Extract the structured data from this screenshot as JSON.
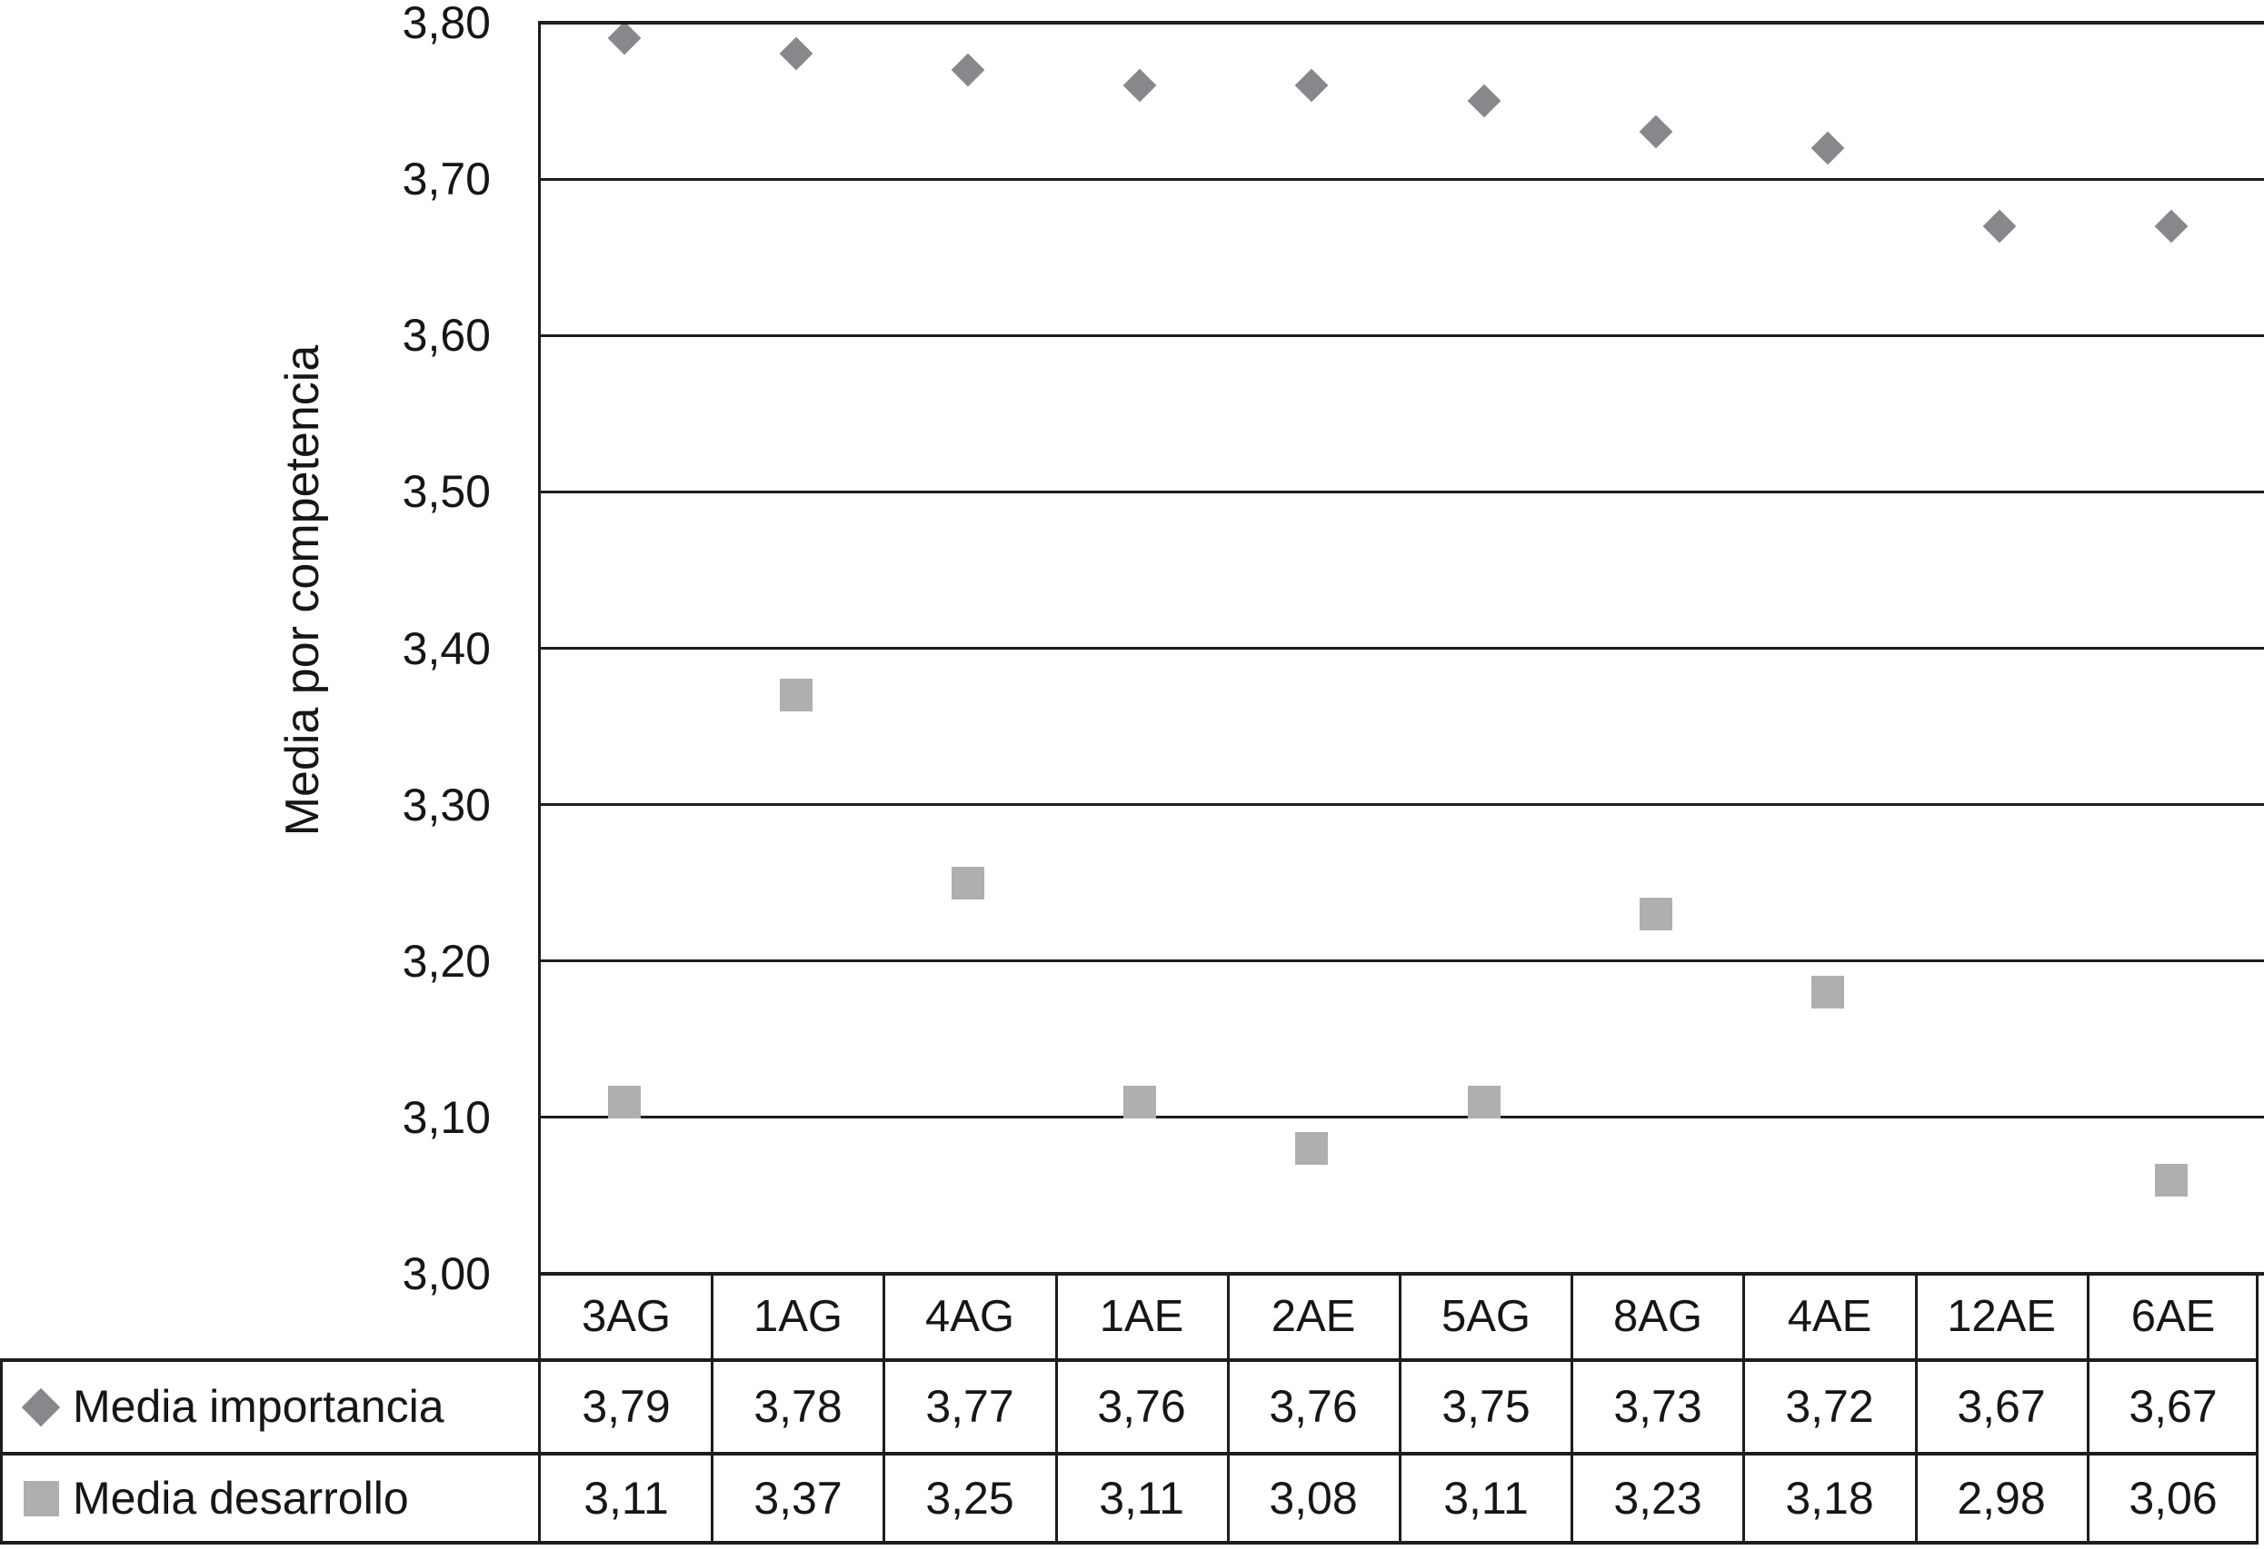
{
  "chart_data": {
    "type": "scatter",
    "ylabel": "Media por competencia",
    "ylim": [
      3.0,
      3.8
    ],
    "ytick_step": 0.1,
    "yticks": [
      "3,80",
      "3,70",
      "3,60",
      "3,50",
      "3,40",
      "3,30",
      "3,20",
      "3,10",
      "3,00"
    ],
    "grid": "horizontal-only",
    "legend_position": "table-left-column",
    "axis_color": "#1d1d1b",
    "text_color": "#161616",
    "categories": [
      "3AG",
      "1AG",
      "4AG",
      "1AE",
      "2AE",
      "5AG",
      "8AG",
      "4AE",
      "12AE",
      "6AE"
    ],
    "series": [
      {
        "name": "Media importancia",
        "marker": "diamond",
        "color": "#87888c",
        "values": [
          3.79,
          3.78,
          3.77,
          3.76,
          3.76,
          3.75,
          3.73,
          3.72,
          3.67,
          3.67
        ],
        "value_labels": [
          "3,79",
          "3,78",
          "3,77",
          "3,76",
          "3,76",
          "3,75",
          "3,73",
          "3,72",
          "3,67",
          "3,67"
        ]
      },
      {
        "name": "Media desarrollo",
        "marker": "square",
        "color": "#adafb1",
        "values": [
          3.11,
          3.37,
          3.25,
          3.11,
          3.08,
          3.11,
          3.23,
          3.18,
          2.98,
          3.06
        ],
        "value_labels": [
          "3,11",
          "3,37",
          "3,25",
          "3,11",
          "3,08",
          "3,11",
          "3,23",
          "3,18",
          "2,98",
          "3,06"
        ]
      }
    ]
  }
}
